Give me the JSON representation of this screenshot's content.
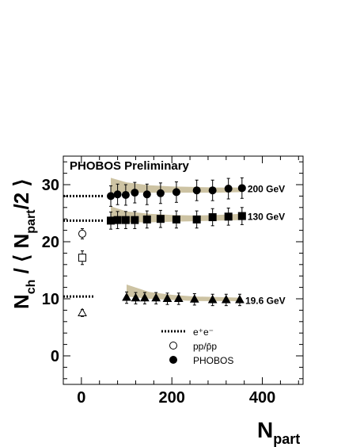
{
  "chart_data": {
    "type": "scatter",
    "title": "PHOBOS Preliminary",
    "xlabel": {
      "main": "N",
      "sub": "part"
    },
    "ylabel": {
      "a": "N",
      "a_sub": "ch",
      "b": " / ⟨ N",
      "b_sub": "part",
      "c": "/2 ⟩"
    },
    "xlim": [
      -40,
      490
    ],
    "ylim": [
      -5,
      35
    ],
    "xticks": [
      "0",
      "200",
      "400"
    ],
    "xtick_values": [
      0,
      200,
      400
    ],
    "yticks": [
      "0",
      "10",
      "20",
      "30"
    ],
    "ytick_values": [
      0,
      10,
      20,
      30
    ],
    "ee_lines": [
      {
        "y": 28.0,
        "x_start": -40,
        "x_end": 50
      },
      {
        "y": 23.7,
        "x_start": -40,
        "x_end": 50
      },
      {
        "y": 10.4,
        "x_start": -40,
        "x_end": 30
      }
    ],
    "pp_points": [
      {
        "shape": "circle",
        "x": 2,
        "y": 21.4,
        "err": 0.9
      },
      {
        "shape": "square",
        "x": 2,
        "y": 17.2,
        "err": 1.2
      },
      {
        "shape": "triangle",
        "x": 2,
        "y": 7.5,
        "err": 0.6
      }
    ],
    "series": [
      {
        "name": "200 GeV",
        "marker": "circle",
        "x": [
          65,
          80,
          98,
          118,
          145,
          175,
          210,
          255,
          290,
          325,
          355
        ],
        "y": [
          28.0,
          28.3,
          28.2,
          28.6,
          28.3,
          28.5,
          28.7,
          29.0,
          29.0,
          29.3,
          29.4
        ],
        "err": [
          1.8,
          1.8,
          1.8,
          1.8,
          1.8,
          1.8,
          1.8,
          1.8,
          1.8,
          1.8,
          1.8
        ],
        "band_x": [
          65,
          100,
          150,
          200,
          250,
          300,
          355
        ],
        "band_upper": [
          31.2,
          30.4,
          29.9,
          29.7,
          29.6,
          29.5,
          29.5
        ],
        "band_lower": [
          28.6,
          28.6,
          28.6,
          28.6,
          28.6,
          28.6,
          28.7
        ]
      },
      {
        "name": "130 GeV",
        "marker": "square",
        "x": [
          65,
          80,
          98,
          118,
          145,
          175,
          210,
          255,
          290,
          325,
          355
        ],
        "y": [
          23.7,
          23.8,
          23.8,
          23.8,
          23.9,
          24.0,
          23.9,
          23.9,
          24.3,
          24.4,
          24.5
        ],
        "err": [
          1.5,
          1.5,
          1.5,
          1.5,
          1.5,
          1.5,
          1.5,
          1.5,
          1.5,
          1.5,
          1.5
        ],
        "band_x": [
          65,
          100,
          150,
          200,
          250,
          300,
          355
        ],
        "band_upper": [
          26.2,
          25.3,
          24.9,
          24.7,
          24.6,
          24.7,
          24.9
        ],
        "band_lower": [
          23.4,
          23.4,
          23.4,
          23.5,
          23.6,
          23.7,
          23.8
        ]
      },
      {
        "name": "19.6 GeV",
        "marker": "triangle",
        "x": [
          100,
          120,
          140,
          165,
          190,
          215,
          250,
          290,
          320,
          350
        ],
        "y": [
          10.2,
          10.1,
          10.1,
          10.1,
          10.0,
          10.0,
          9.9,
          9.8,
          9.8,
          9.8
        ],
        "err": [
          1.0,
          1.0,
          1.0,
          1.0,
          1.0,
          1.0,
          1.0,
          1.0,
          1.0,
          1.0
        ],
        "band_x": [
          100,
          150,
          200,
          250,
          300,
          355
        ],
        "band_upper": [
          12.5,
          11.2,
          10.7,
          10.4,
          10.3,
          10.2
        ],
        "band_lower": [
          10.4,
          10.0,
          9.8,
          9.6,
          9.6,
          9.6
        ]
      }
    ],
    "legend": [
      {
        "symbol": "dotted-line",
        "label": "e⁺e⁻"
      },
      {
        "symbol": "open-circle",
        "label": "pp/p̄p"
      },
      {
        "symbol": "filled-circle",
        "label": "PHOBOS"
      }
    ],
    "legend_position": "bottom-center",
    "colors": {
      "band": "#cdc3a3",
      "marker": "#000000"
    }
  }
}
